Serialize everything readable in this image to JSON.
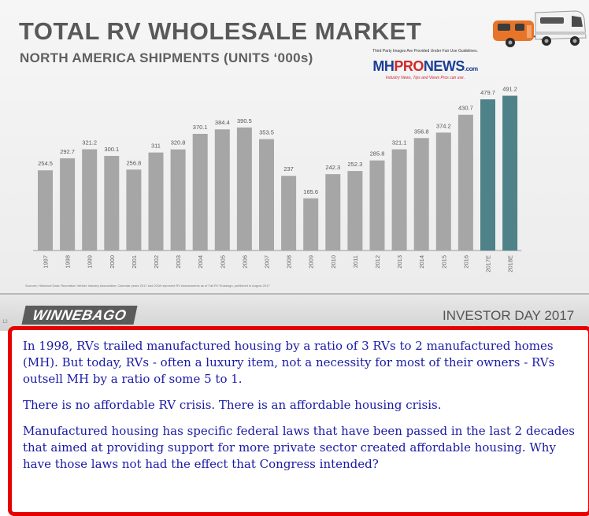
{
  "slide": {
    "title": "TOTAL RV WHOLESALE MARKET",
    "subtitle": "NORTH AMERICA SHIPMENTS (UNITS ‘000s)",
    "source_note": "Sources: Historical Data: Recreation Vehicle Industry Association; Calendar years 2017 and 2018 represent RV Assessments as of Fall RV Roadsign, published in August 2017",
    "footer": {
      "slide_number": "12",
      "logo_text": "WINNEBAGO",
      "event_text": "INVESTOR DAY 2017"
    }
  },
  "watermark": {
    "notice": "Third Party Images Are Provided Under Fair Use Guidelines.",
    "logo_mh": "MH",
    "logo_pro": "PRO",
    "logo_news": "NEWS",
    "logo_dotcom": ".com",
    "tagline": "Industry News, Tips and Views Pros can use."
  },
  "chart_data": {
    "type": "bar",
    "title": "TOTAL RV WHOLESALE MARKET",
    "subtitle": "NORTH AMERICA SHIPMENTS (UNITS ‘000s)",
    "categories": [
      "1997",
      "1998",
      "1999",
      "2000",
      "2001",
      "2002",
      "2003",
      "2004",
      "2005",
      "2006",
      "2007",
      "2008",
      "2009",
      "2010",
      "2011",
      "2012",
      "2013",
      "2014",
      "2015",
      "2016",
      "2017E",
      "2018E"
    ],
    "values": [
      254.5,
      292.7,
      321.2,
      300.1,
      256.8,
      311,
      320.8,
      370.1,
      384.4,
      390.5,
      353.5,
      237,
      165.6,
      242.3,
      252.3,
      285.8,
      321.1,
      356.8,
      374.2,
      430.7,
      479.7,
      491.2
    ],
    "value_labels": [
      "254.5",
      "292.7",
      "321.2",
      "300.1",
      "256.8",
      "311",
      "320.8",
      "370.1",
      "384.4",
      "390.5",
      "353.5",
      "237",
      "165.6",
      "242.3",
      "252.3",
      "285.8",
      "321.1",
      "356.8",
      "374.2",
      "430.7",
      "479.7",
      "491.2"
    ],
    "ylim": [
      0,
      500
    ],
    "grid": false,
    "colors": {
      "actual": "#a6a6a6",
      "estimate": "#4f8189"
    },
    "estimate_categories": [
      "2017E",
      "2018E"
    ]
  },
  "note": {
    "paragraphs": [
      "In 1998, RVs trailed manufactured housing by a ratio of 3 RVs to 2 manufactured homes (MH). But today, RVs - often a luxury item, not a necessity for most of their owners - RVs outsell MH by a ratio of some 5 to 1.",
      "There is no affordable RV crisis. There is an affordable housing crisis.",
      "Manufactured housing has specific federal laws that have been passed in the last 2 decades that aimed at providing support for more private sector created affordable housing.  Why have those laws not had the effect that Congress intended?"
    ]
  }
}
